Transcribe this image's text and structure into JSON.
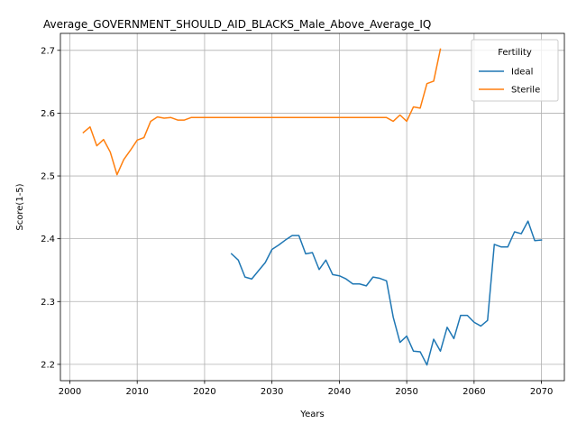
{
  "chart_data": {
    "type": "line",
    "title": "Average_GOVERNMENT_SHOULD_AID_BLACKS_Male_Above_Average_IQ",
    "xlabel": "Years",
    "ylabel": "Score(1-5)",
    "xlim": [
      1998.6,
      2073.4
    ],
    "ylim": [
      2.174,
      2.727
    ],
    "xticks": [
      2000,
      2010,
      2020,
      2030,
      2040,
      2050,
      2060,
      2070
    ],
    "yticks": [
      2.2,
      2.3,
      2.4,
      2.5,
      2.6,
      2.7
    ],
    "xtick_labels": [
      "2000",
      "2010",
      "2020",
      "2030",
      "2040",
      "2050",
      "2060",
      "2070"
    ],
    "ytick_labels": [
      "2.2",
      "2.3",
      "2.4",
      "2.5",
      "2.6",
      "2.7"
    ],
    "grid": true,
    "legend": {
      "title": "Fertility",
      "placement": "top-right"
    },
    "series": [
      {
        "name": "Ideal",
        "color": "#1f77b4",
        "x": [
          2024,
          2025,
          2026,
          2027,
          2028,
          2029,
          2030,
          2031,
          2032,
          2033,
          2034,
          2035,
          2036,
          2037,
          2038,
          2039,
          2040,
          2041,
          2042,
          2043,
          2044,
          2045,
          2046,
          2047,
          2048,
          2049,
          2050,
          2051,
          2052,
          2053,
          2054,
          2055,
          2056,
          2057,
          2058,
          2059,
          2060,
          2061,
          2062,
          2063,
          2064,
          2065,
          2066,
          2067,
          2068,
          2069,
          2070
        ],
        "y": [
          2.376,
          2.366,
          2.339,
          2.336,
          2.349,
          2.362,
          2.383,
          2.39,
          2.398,
          2.405,
          2.405,
          2.376,
          2.378,
          2.351,
          2.366,
          2.343,
          2.341,
          2.336,
          2.328,
          2.328,
          2.325,
          2.339,
          2.337,
          2.333,
          2.275,
          2.235,
          2.245,
          2.221,
          2.22,
          2.199,
          2.24,
          2.221,
          2.259,
          2.241,
          2.278,
          2.278,
          2.267,
          2.261,
          2.27,
          2.391,
          2.387,
          2.387,
          2.411,
          2.408,
          2.428,
          2.397,
          2.398
        ]
      },
      {
        "name": "Sterile",
        "color": "#ff7f0e",
        "x": [
          2002,
          2003,
          2004,
          2005,
          2006,
          2007,
          2008,
          2009,
          2010,
          2011,
          2012,
          2013,
          2014,
          2015,
          2016,
          2017,
          2018,
          2019,
          2020,
          2021,
          2022,
          2023,
          2024,
          2025,
          2026,
          2027,
          2028,
          2029,
          2030,
          2031,
          2032,
          2033,
          2034,
          2035,
          2036,
          2037,
          2038,
          2039,
          2040,
          2041,
          2042,
          2043,
          2044,
          2045,
          2046,
          2047,
          2048,
          2049,
          2050,
          2051,
          2052,
          2053,
          2054,
          2055
        ],
        "y": [
          2.569,
          2.578,
          2.548,
          2.558,
          2.538,
          2.502,
          2.526,
          2.541,
          2.557,
          2.561,
          2.587,
          2.594,
          2.592,
          2.593,
          2.589,
          2.589,
          2.593,
          2.593,
          2.593,
          2.593,
          2.593,
          2.593,
          2.593,
          2.593,
          2.593,
          2.593,
          2.593,
          2.593,
          2.593,
          2.593,
          2.593,
          2.593,
          2.593,
          2.593,
          2.593,
          2.593,
          2.593,
          2.593,
          2.593,
          2.593,
          2.593,
          2.593,
          2.593,
          2.593,
          2.593,
          2.593,
          2.587,
          2.597,
          2.587,
          2.61,
          2.608,
          2.647,
          2.651,
          2.702
        ]
      }
    ]
  }
}
